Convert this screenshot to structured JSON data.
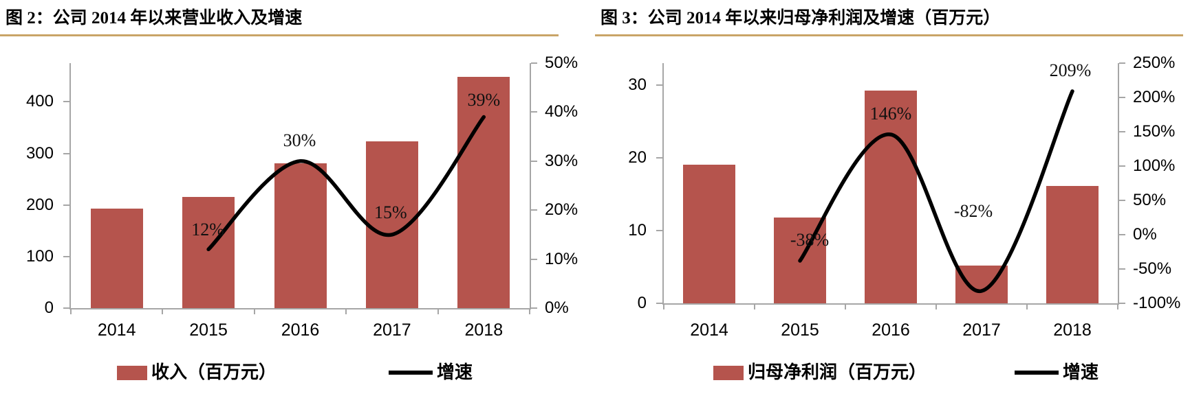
{
  "page": {
    "background": "#ffffff"
  },
  "styles": {
    "rule_color": "#c9a467",
    "axis_color": "#a6a6a6",
    "bar_color": "#b5544d",
    "line_color": "#000000"
  },
  "charts": [
    {
      "id": "fig2",
      "title": "图 2：公司 2014 年以来营业收入及增速",
      "legend": [
        {
          "label": "收入（百万元）",
          "marker": "bar"
        },
        {
          "label": "增速",
          "marker": "line"
        }
      ],
      "chart_data": {
        "type": "bar+line",
        "categories": [
          "2014",
          "2015",
          "2016",
          "2017",
          "2018"
        ],
        "series": [
          {
            "name": "收入（百万元）",
            "type": "bar",
            "axis": "left",
            "values": [
              193,
              216,
              281,
              323,
              449
            ]
          },
          {
            "name": "增速",
            "type": "line",
            "axis": "right",
            "values": [
              null,
              12,
              30,
              15,
              39
            ],
            "point_labels": [
              "",
              "12%",
              "30%",
              "15%",
              "39%"
            ]
          }
        ],
        "left_axis": {
          "tick_labels": [
            "0",
            "100",
            "200",
            "300",
            "400"
          ],
          "tick_values": [
            0,
            100,
            200,
            300,
            400
          ],
          "min": 0,
          "max": 475
        },
        "right_axis": {
          "tick_labels": [
            "0%",
            "10%",
            "20%",
            "30%",
            "40%",
            "50%"
          ],
          "tick_values": [
            0,
            10,
            20,
            30,
            40,
            50
          ],
          "min": 0,
          "max": 50
        },
        "grid": false,
        "legend_position": "bottom"
      }
    },
    {
      "id": "fig3",
      "title": "图 3：公司 2014 年以来归母净利润及增速（百万元）",
      "legend": [
        {
          "label": "归母净利润（百万元）",
          "marker": "bar"
        },
        {
          "label": "增速",
          "marker": "line"
        }
      ],
      "chart_data": {
        "type": "bar+line",
        "categories": [
          "2014",
          "2015",
          "2016",
          "2017",
          "2018"
        ],
        "series": [
          {
            "name": "归母净利润（百万元）",
            "type": "bar",
            "axis": "left",
            "values": [
              19,
              11.8,
              29.2,
              5.2,
              16.1
            ]
          },
          {
            "name": "增速",
            "type": "line",
            "axis": "right",
            "values": [
              null,
              -38,
              146,
              -82,
              209
            ],
            "point_labels": [
              "",
              "-38%",
              "146%",
              "-82%",
              "209%"
            ]
          }
        ],
        "left_axis": {
          "tick_labels": [
            "0",
            "10",
            "20",
            "30"
          ],
          "tick_values": [
            0,
            10,
            20,
            30
          ],
          "min": 0,
          "max": 33
        },
        "right_axis": {
          "tick_labels": [
            "-100%",
            "-50%",
            "0%",
            "50%",
            "100%",
            "150%",
            "200%",
            "250%"
          ],
          "tick_values": [
            -100,
            -50,
            0,
            50,
            100,
            150,
            200,
            250
          ],
          "min": -100,
          "max": 250
        },
        "grid": false,
        "legend_position": "bottom"
      }
    }
  ]
}
